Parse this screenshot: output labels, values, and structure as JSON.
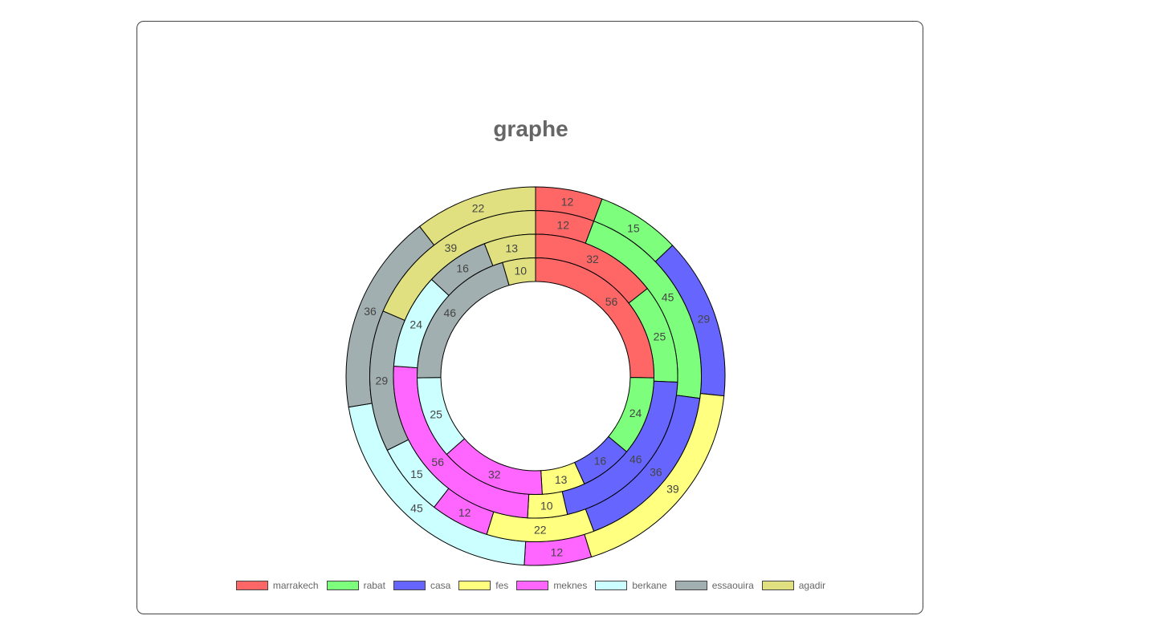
{
  "chart_data": {
    "type": "doughnut",
    "title": "graphe",
    "categories": [
      "marrakech",
      "rabat",
      "casa",
      "fes",
      "meknes",
      "berkane",
      "essaouira",
      "agadir"
    ],
    "colors": [
      "#ff6666",
      "#7dff7d",
      "#6666ff",
      "#ffff80",
      "#ff66ff",
      "#ccffff",
      "#a2afb0",
      "#e0e080"
    ],
    "series": [
      {
        "values": [
          12,
          15,
          29,
          39,
          12,
          45,
          36,
          22
        ]
      },
      {
        "values": [
          12,
          45,
          36,
          22,
          12,
          15,
          29,
          39
        ]
      },
      {
        "values": [
          32,
          25,
          46,
          10,
          56,
          24,
          16,
          13
        ]
      },
      {
        "values": [
          56,
          24,
          16,
          13,
          32,
          25,
          46,
          10
        ]
      }
    ],
    "legend_position": "bottom"
  }
}
